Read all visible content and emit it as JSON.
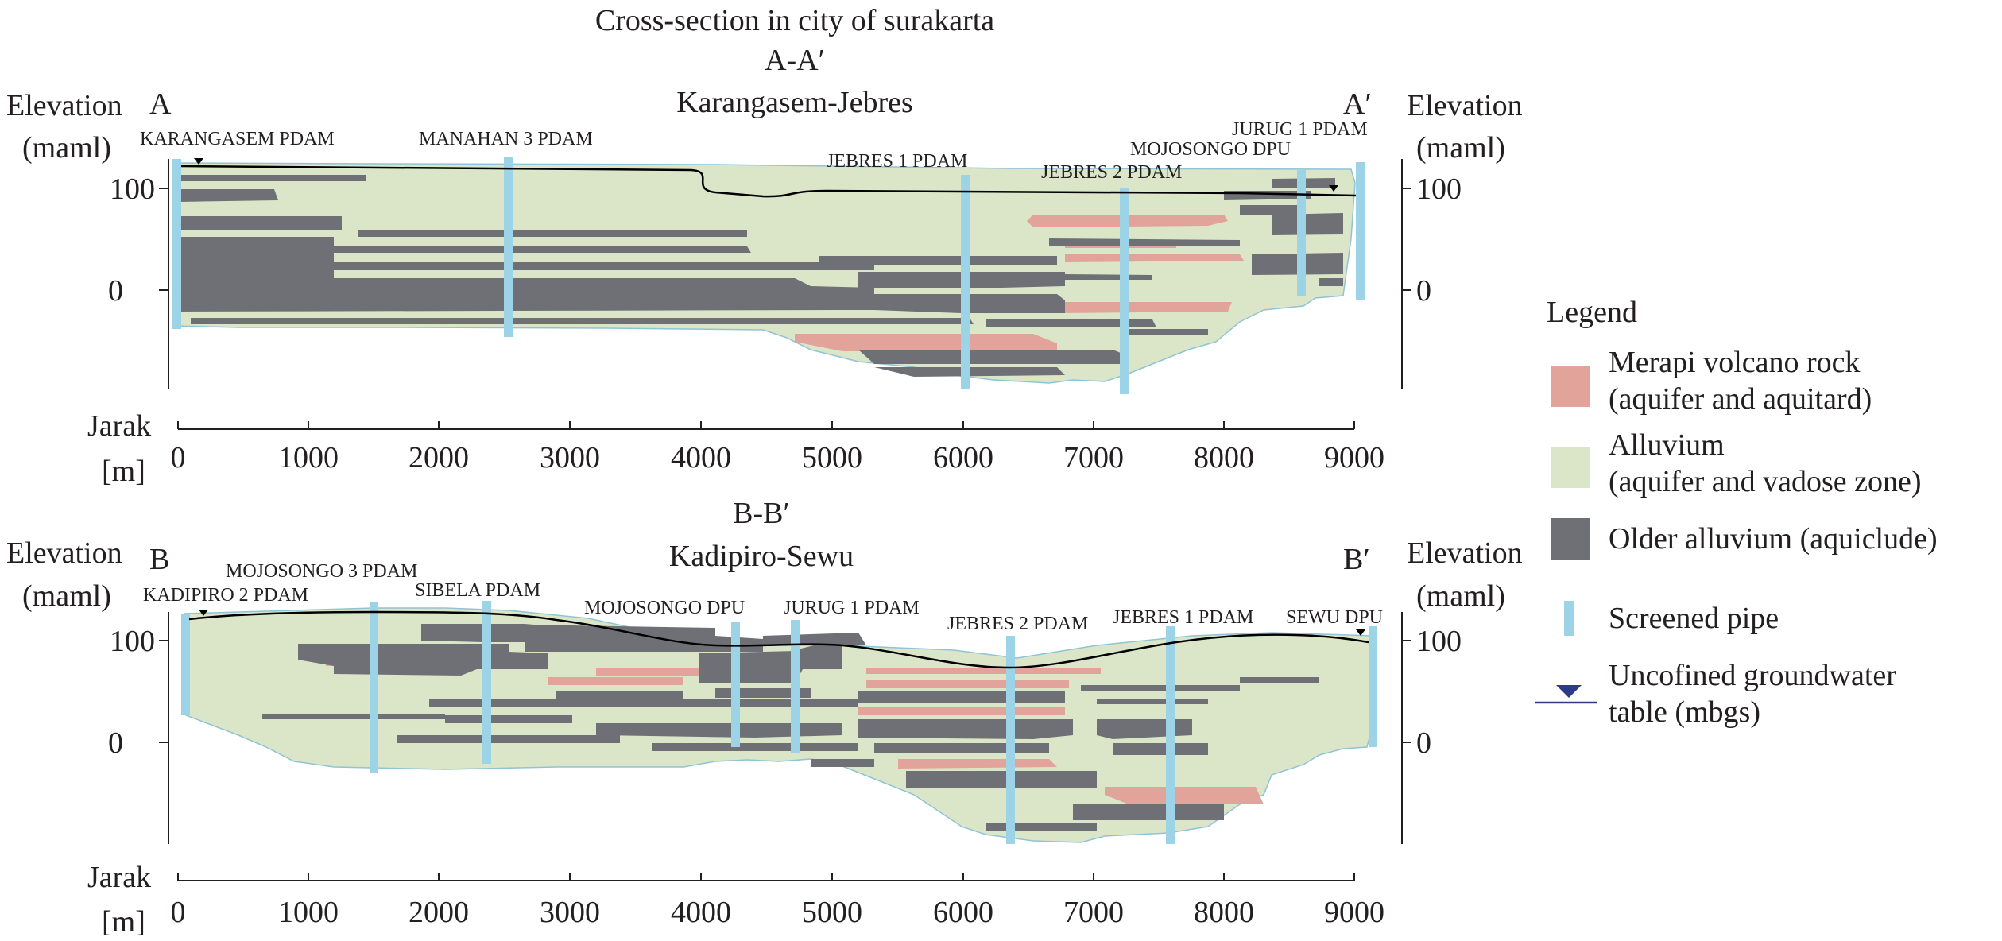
{
  "figure_title": "Cross-section in city of surakarta",
  "colors": {
    "merapi": "#e1a39a",
    "alluvium": "#dbe6c9",
    "older": "#6f7075",
    "pipe": "#9dd3e6",
    "line": "#000000",
    "water_table_legend": "#2e3a8c"
  },
  "sections": [
    {
      "id": "A",
      "code": "A-A′",
      "name": "Karangasem-Jebres",
      "left_end": "A",
      "right_end": "A′",
      "y_axis_label": [
        "Elevation",
        "(maml)"
      ],
      "y_ticks": [
        "100",
        "0"
      ],
      "x_axis_label": [
        "Jarak",
        "[m]"
      ],
      "x_ticks": [
        "0",
        "1000",
        "2000",
        "3000",
        "4000",
        "5000",
        "6000",
        "7000",
        "8000",
        "9000"
      ],
      "wells": [
        {
          "label": "KARANGASEM PDAM",
          "x_m": 0
        },
        {
          "label": "MANAHAN 3 PDAM",
          "x_m": 2520
        },
        {
          "label": "JEBRES 1 PDAM",
          "x_m": 6020
        },
        {
          "label": "JEBRES 2 PDAM",
          "x_m": 7250
        },
        {
          "label": "MOJOSONGO DPU",
          "x_m": 8600
        },
        {
          "label": "JURUG 1 PDAM",
          "x_m": 9040
        }
      ]
    },
    {
      "id": "B",
      "code": "B-B′",
      "name": "Kadipiro-Sewu",
      "left_end": "B",
      "right_end": "B′",
      "y_axis_label": [
        "Elevation",
        "(maml)"
      ],
      "y_ticks": [
        "100",
        "0"
      ],
      "x_axis_label": [
        "Jarak",
        "[m]"
      ],
      "x_ticks": [
        "0",
        "1000",
        "2000",
        "3000",
        "4000",
        "5000",
        "6000",
        "7000",
        "8000",
        "9000"
      ],
      "wells": [
        {
          "label": "KADIPIRO 2 PDAM",
          "x_m": 0
        },
        {
          "label": "MOJOSONGO 3 PDAM",
          "x_m": 1500
        },
        {
          "label": "SIBELA PDAM",
          "x_m": 2360
        },
        {
          "label": "MOJOSONGO DPU",
          "x_m": 4260
        },
        {
          "label": "JURUG 1 PDAM",
          "x_m": 4720
        },
        {
          "label": "JEBRES 2 PDAM",
          "x_m": 6400
        },
        {
          "label": "JEBRES 1 PDAM",
          "x_m": 7620
        },
        {
          "label": "SEWU DPU",
          "x_m": 9160
        }
      ]
    }
  ],
  "legend": {
    "title": "Legend",
    "items": [
      {
        "key": "merapi",
        "lines": [
          "Merapi volcano rock",
          "(aquifer and aquitard)"
        ]
      },
      {
        "key": "alluvium",
        "lines": [
          "Alluvium",
          "(aquifer and vadose zone)"
        ]
      },
      {
        "key": "older",
        "lines": [
          "Older alluvium (aquiclude)"
        ]
      },
      {
        "key": "pipe",
        "lines": [
          "Screened pipe"
        ]
      },
      {
        "key": "watertable",
        "lines": [
          "Uncofined groundwater",
          "table (mbgs)"
        ]
      }
    ]
  }
}
